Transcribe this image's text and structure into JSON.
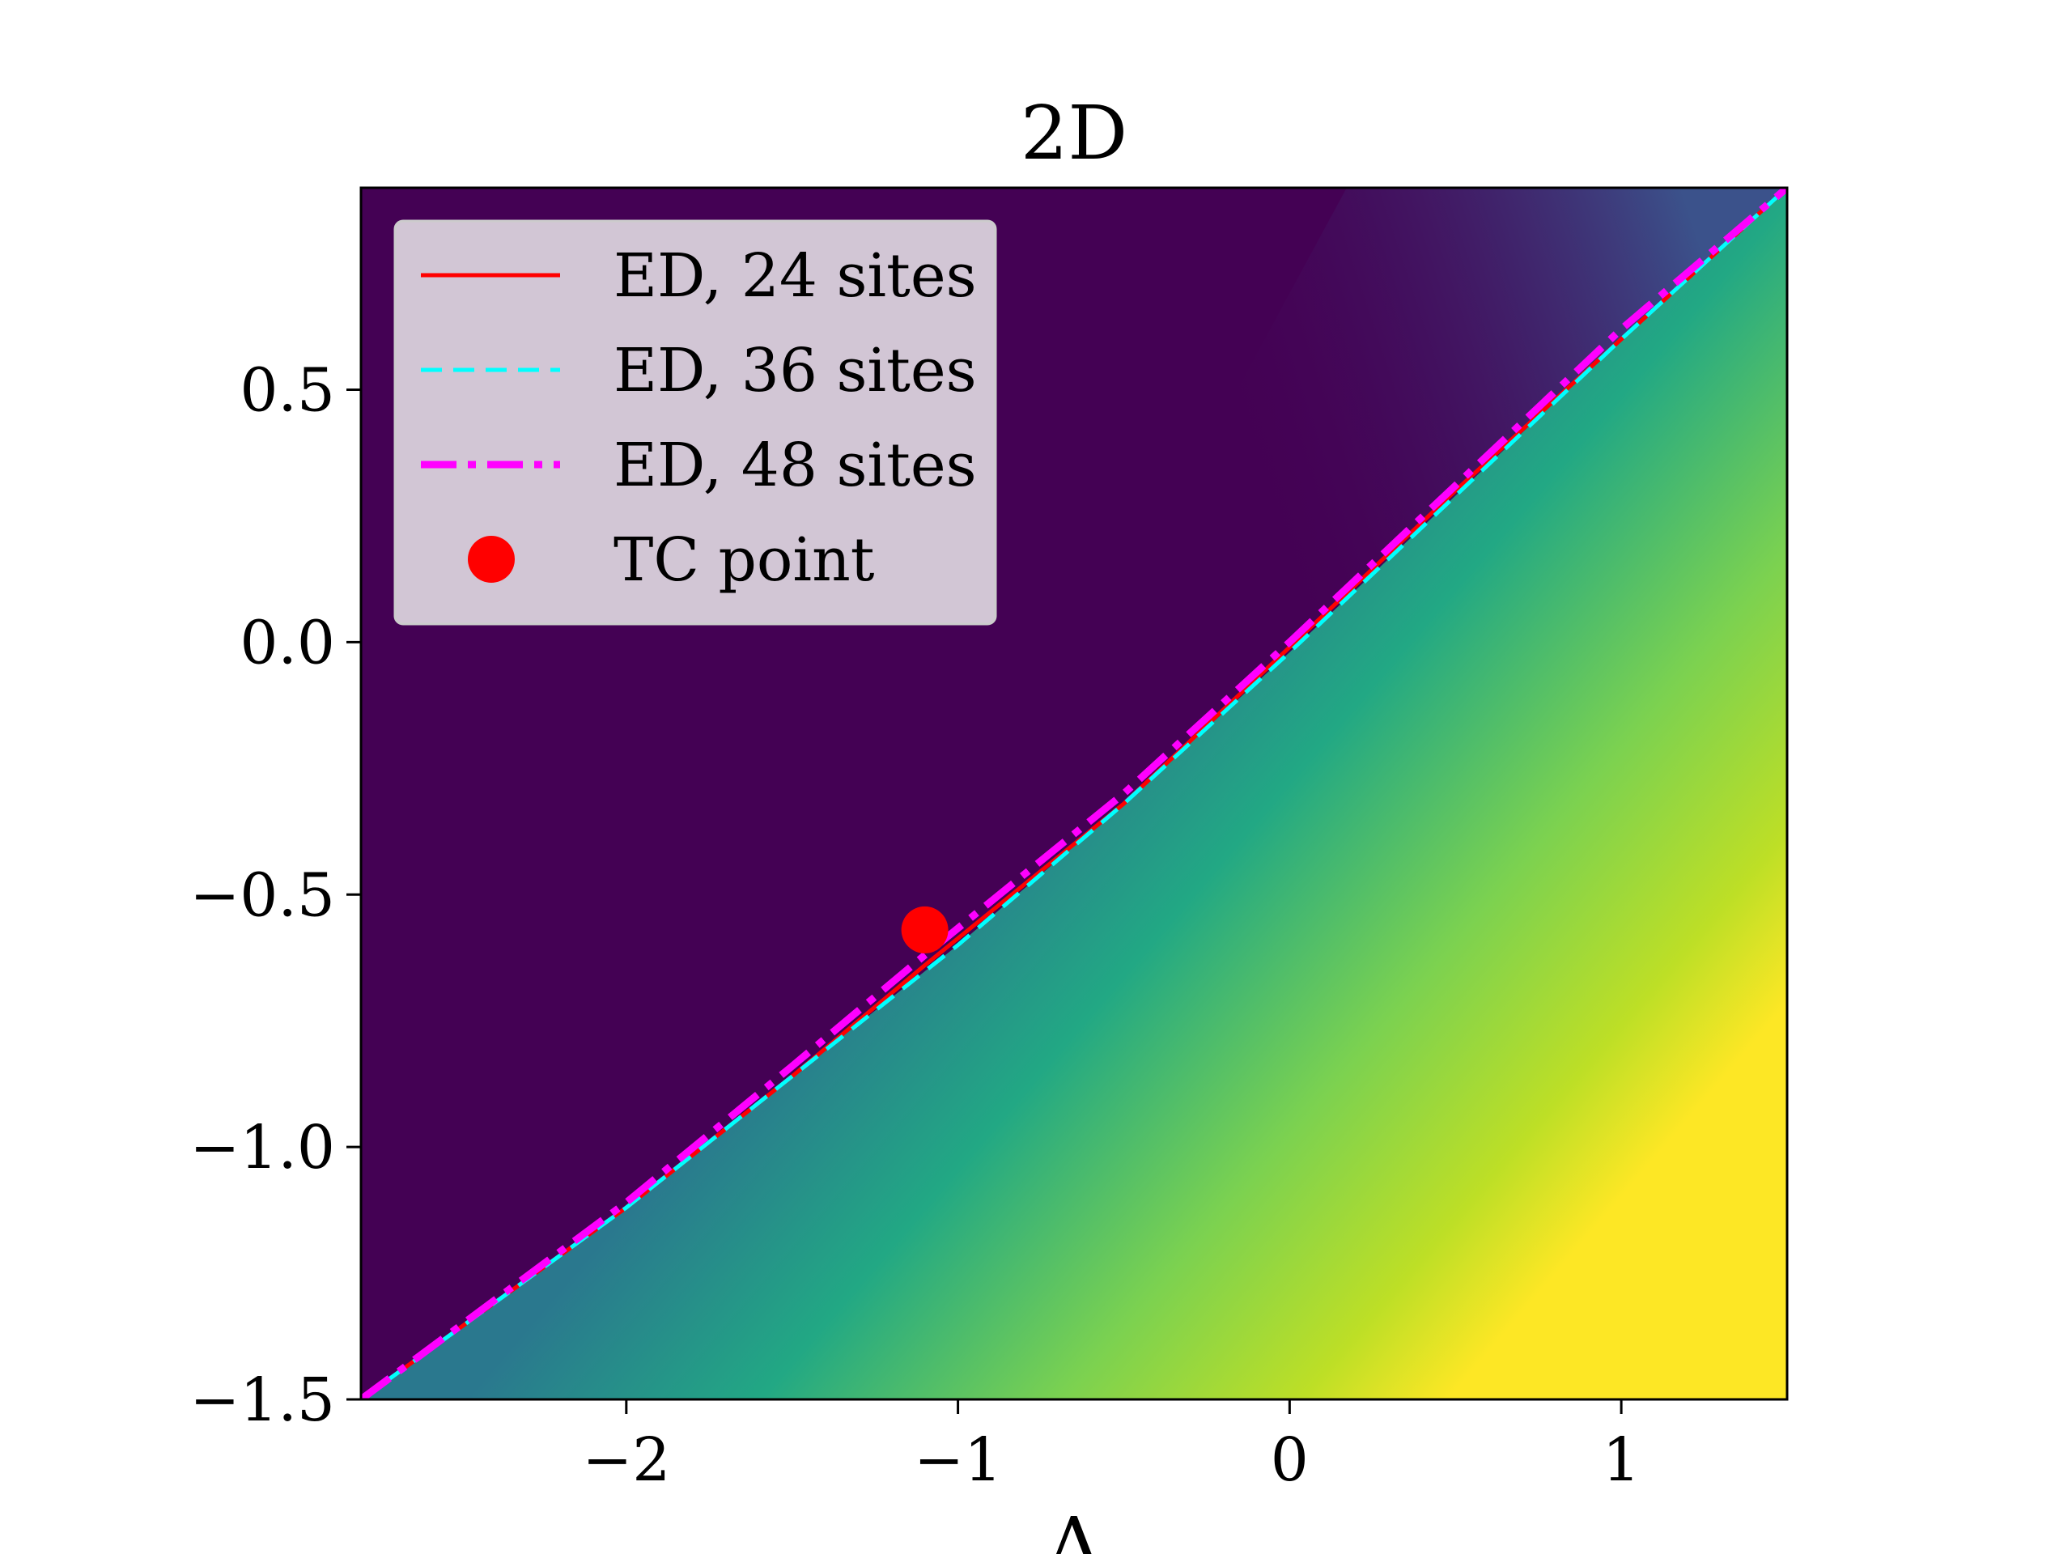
{
  "chart_data": {
    "type": "heatmap",
    "title": "2D",
    "xlabel": "Δ",
    "ylabel": "",
    "xlim": [
      -2.8,
      1.5
    ],
    "ylim": [
      -1.5,
      0.9
    ],
    "grid": false,
    "colormap": "viridis",
    "xticks": [
      {
        "value": -2,
        "label": "−2"
      },
      {
        "value": -1,
        "label": "−1"
      },
      {
        "value": 0,
        "label": "0"
      },
      {
        "value": 1,
        "label": "1"
      }
    ],
    "yticks": [
      {
        "value": -1.5,
        "label": "−1.5"
      },
      {
        "value": -1.0,
        "label": "−1.0"
      },
      {
        "value": -0.5,
        "label": "−0.5"
      },
      {
        "value": 0.0,
        "label": "0.0"
      },
      {
        "value": 0.5,
        "label": "0.5"
      }
    ],
    "legend": {
      "position": "upper-left",
      "entries": [
        {
          "label": "ED, 24 sites",
          "color": "#ff0000",
          "style": "solid"
        },
        {
          "label": "ED, 36 sites",
          "color": "#00ffff",
          "style": "dashed"
        },
        {
          "label": "ED, 48 sites",
          "color": "#ff00ff",
          "style": "dashdot"
        },
        {
          "label": "TC point",
          "color": "#ff0000",
          "style": "marker"
        }
      ]
    },
    "series": [
      {
        "name": "ED, 24 sites",
        "x": [
          -2.8,
          -2.0,
          -1.5,
          -1.1,
          -0.5,
          0.0,
          0.5,
          1.0,
          1.5
        ],
        "y": [
          -1.5,
          -1.12,
          -0.86,
          -0.64,
          -0.32,
          -0.01,
          0.3,
          0.6,
          0.9
        ]
      },
      {
        "name": "ED, 36 sites",
        "x": [
          -2.8,
          -2.0,
          -1.5,
          -1.0,
          -0.5,
          0.0,
          0.5,
          1.0,
          1.5
        ],
        "y": [
          -1.5,
          -1.12,
          -0.86,
          -0.6,
          -0.32,
          -0.02,
          0.29,
          0.6,
          0.9
        ]
      },
      {
        "name": "ED, 48 sites",
        "x": [
          -2.8,
          -2.0,
          -1.5,
          -1.1,
          -0.5,
          0.0,
          0.5,
          1.0,
          1.5
        ],
        "y": [
          -1.5,
          -1.11,
          -0.84,
          -0.62,
          -0.3,
          0.0,
          0.31,
          0.62,
          0.9
        ]
      }
    ],
    "points": [
      {
        "name": "TC point",
        "x": -1.1,
        "y": -0.57
      }
    ]
  }
}
